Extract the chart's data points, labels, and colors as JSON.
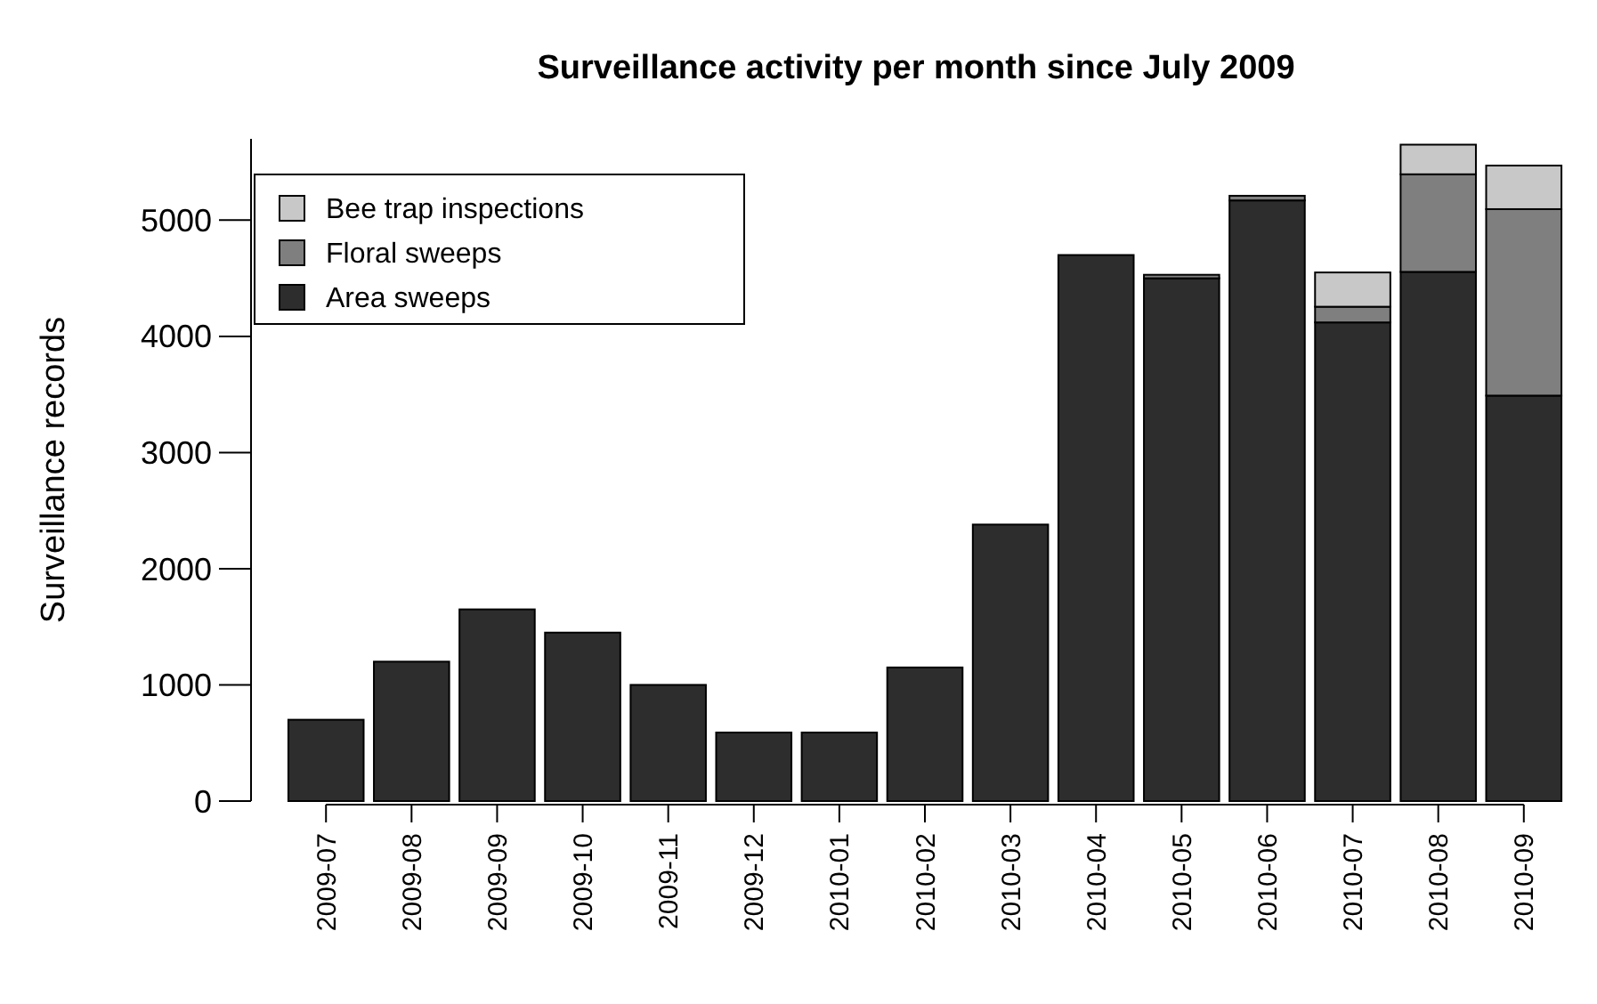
{
  "chart_data": {
    "type": "bar",
    "title": "Surveillance activity per month since July 2009",
    "ylabel": "Surveillance records",
    "categories": [
      "2009-07",
      "2009-08",
      "2009-09",
      "2009-10",
      "2009-11",
      "2009-12",
      "2010-01",
      "2010-02",
      "2010-03",
      "2010-04",
      "2010-05",
      "2010-06",
      "2010-07",
      "2010-08",
      "2010-09"
    ],
    "series": [
      {
        "name": "Area sweeps",
        "color": "#2d2d2d",
        "values": [
          700,
          1200,
          1650,
          1450,
          1000,
          590,
          590,
          1150,
          2380,
          4700,
          4500,
          5170,
          4120,
          4555,
          3490
        ]
      },
      {
        "name": "Floral sweeps",
        "color": "#7f7f7f",
        "values": [
          0,
          0,
          0,
          0,
          0,
          0,
          0,
          0,
          0,
          0,
          30,
          40,
          135,
          840,
          1605
        ]
      },
      {
        "name": "Bee trap inspections",
        "color": "#c8c8c8",
        "values": [
          0,
          0,
          0,
          0,
          0,
          0,
          0,
          0,
          0,
          0,
          0,
          0,
          295,
          255,
          375
        ]
      }
    ],
    "stacked": true,
    "ylim": [
      0,
      5700
    ],
    "yticks": [
      0,
      1000,
      2000,
      3000,
      4000,
      5000
    ],
    "grid": false,
    "legend": "top left"
  }
}
